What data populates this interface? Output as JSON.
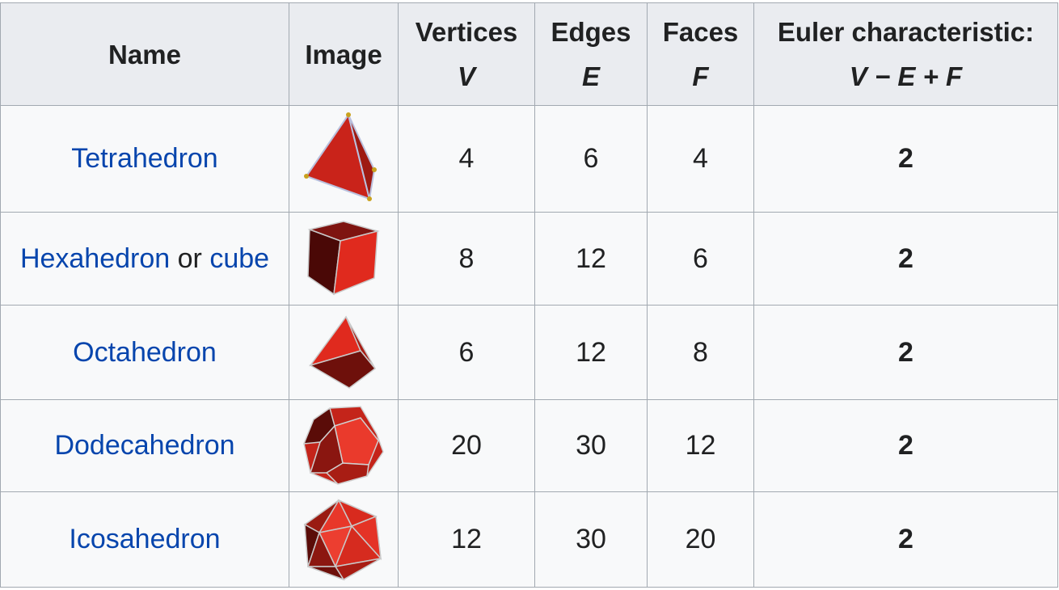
{
  "colors": {
    "link": "#0645ad",
    "header_bg": "#eaecf0",
    "cell_bg": "#f8f9fa",
    "border": "#a2a9b1",
    "face_red": "#d42b1e"
  },
  "header": {
    "name": "Name",
    "image": "Image",
    "vertices": "Vertices",
    "vertices_sym": "V",
    "edges": "Edges",
    "edges_sym": "E",
    "faces": "Faces",
    "faces_sym": "F",
    "euler": "Euler characteristic:",
    "euler_formula": "V − E + F"
  },
  "rows": [
    {
      "name": "Tetrahedron",
      "icon": "tetrahedron-icon",
      "vertices": "4",
      "edges": "6",
      "faces": "4",
      "euler": "2"
    },
    {
      "name": "Hexahedron",
      "conj": "or",
      "alt": "cube",
      "icon": "cube-icon",
      "vertices": "8",
      "edges": "12",
      "faces": "6",
      "euler": "2"
    },
    {
      "name": "Octahedron",
      "icon": "octahedron-icon",
      "vertices": "6",
      "edges": "12",
      "faces": "8",
      "euler": "2"
    },
    {
      "name": "Dodecahedron",
      "icon": "dodecahedron-icon",
      "vertices": "20",
      "edges": "30",
      "faces": "12",
      "euler": "2"
    },
    {
      "name": "Icosahedron",
      "icon": "icosahedron-icon",
      "vertices": "12",
      "edges": "30",
      "faces": "20",
      "euler": "2"
    }
  ]
}
